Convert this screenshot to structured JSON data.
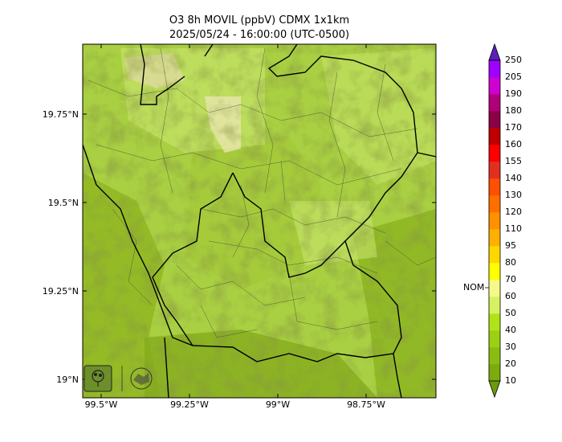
{
  "title": "O3 8h MOVIL (ppbV) CDMX 1x1km",
  "subtitle": "2025/05/24 - 16:00:00 (UTC-0500)",
  "map": {
    "lon_range": [
      -99.58,
      -98.58
    ],
    "lat_range": [
      18.95,
      19.95
    ],
    "lat_ticks": [
      {
        "label": "19.75°N"
      },
      {
        "label": "19.5°N"
      },
      {
        "label": "19.25°N"
      },
      {
        "label": "19°N"
      }
    ],
    "lon_ticks": [
      {
        "label": "99.5°W"
      },
      {
        "label": "99.25°W"
      },
      {
        "label": "99°W"
      },
      {
        "label": "98.75°W"
      }
    ],
    "logos": [
      "sedema-logo",
      "ciudad-de-mexico-logo"
    ]
  },
  "colorbar": {
    "levels": [
      "10",
      "20",
      "30",
      "40",
      "50",
      "60",
      "70",
      "80",
      "95",
      "110",
      "120",
      "130",
      "140",
      "155",
      "160",
      "170",
      "180",
      "190",
      "205",
      "250"
    ],
    "colors": [
      "#6b9a0a",
      "#7bab0d",
      "#8bbd10",
      "#9cd013",
      "#b1e31a",
      "#d5f260",
      "#f4f98a",
      "#ffff00",
      "#ffd700",
      "#ffb000",
      "#ff9000",
      "#ff6f00",
      "#ff4f00",
      "#e03020",
      "#ff0000",
      "#c00000",
      "#8b0046",
      "#b0007a",
      "#d000d0",
      "#a000ff",
      "#5a1fbe"
    ],
    "nom_label": "NOM",
    "nom_value": 60
  }
}
